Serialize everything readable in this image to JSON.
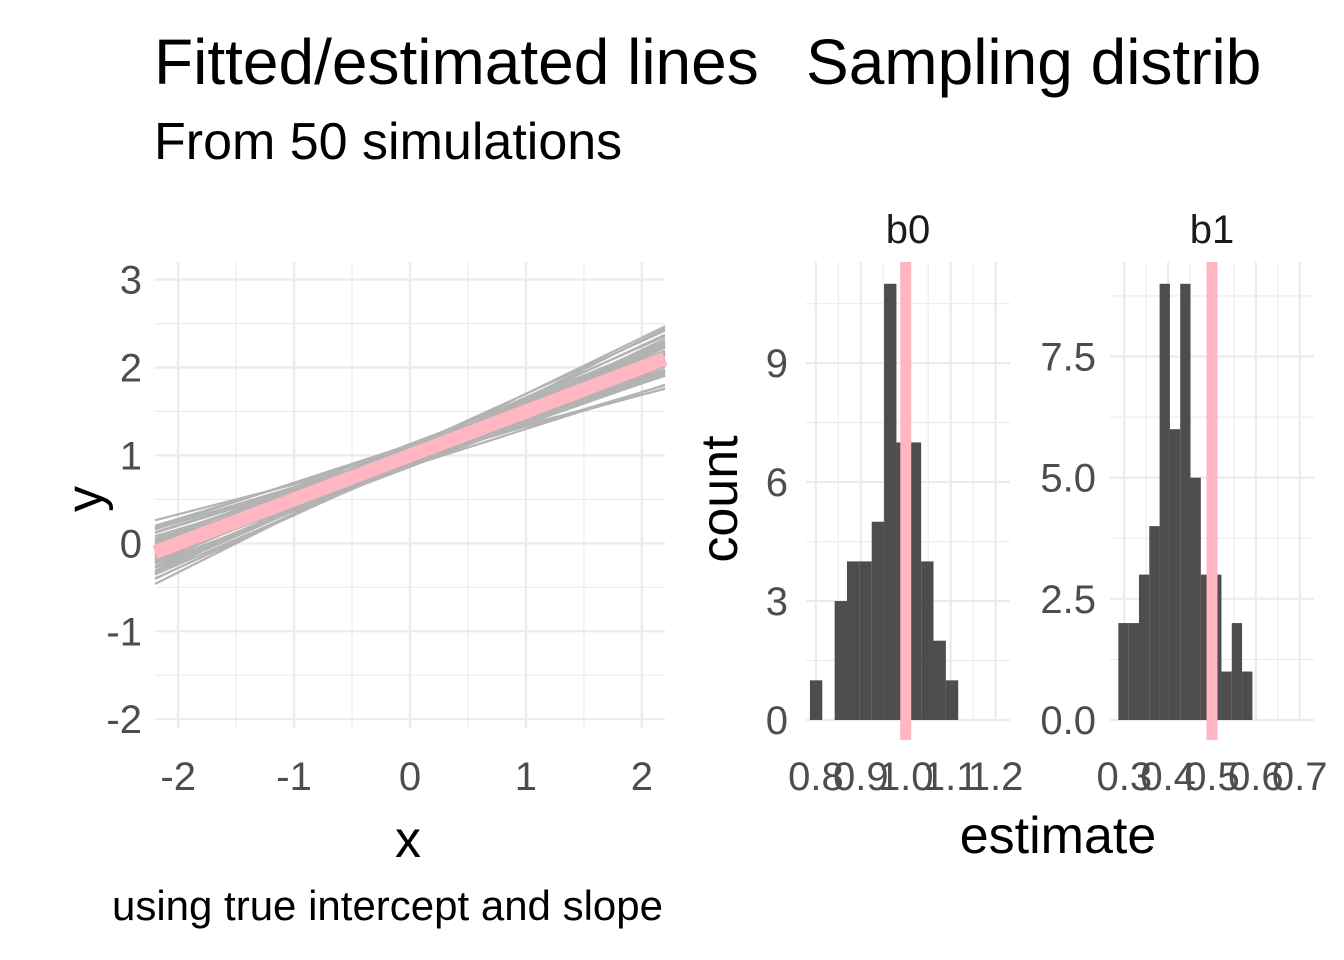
{
  "chart_data": [
    {
      "type": "line",
      "title": "Fitted/estimated lines",
      "subtitle": "From 50 simulations",
      "caption": "using true intercept and slope",
      "xlabel": "x",
      "ylabel": "y",
      "xlim": [
        -2.2,
        2.2
      ],
      "ylim": [
        -2.1,
        3.2
      ],
      "x_ticks": [
        "-2",
        "-1",
        "0",
        "1",
        "2"
      ],
      "y_ticks": [
        "-2",
        "-1",
        "0",
        "1",
        "2",
        "3"
      ],
      "grid": true,
      "true_line": {
        "intercept": 1.0,
        "slope": 0.5,
        "color": "#FFB6C1"
      },
      "line_color": "#B3B3B3",
      "fitted_lines": [
        {
          "b0": 0.98,
          "b1": 0.5
        },
        {
          "b0": 1.05,
          "b1": 0.55
        },
        {
          "b0": 0.92,
          "b1": 0.45
        },
        {
          "b0": 1.1,
          "b1": 0.6
        },
        {
          "b0": 0.95,
          "b1": 0.48
        },
        {
          "b0": 1.02,
          "b1": 0.52
        },
        {
          "b0": 0.88,
          "b1": 0.42
        },
        {
          "b0": 1.08,
          "b1": 0.58
        },
        {
          "b0": 0.99,
          "b1": 0.44
        },
        {
          "b0": 1.01,
          "b1": 0.56
        },
        {
          "b0": 0.96,
          "b1": 0.62
        },
        {
          "b0": 1.04,
          "b1": 0.4
        },
        {
          "b0": 0.93,
          "b1": 0.51
        },
        {
          "b0": 1.07,
          "b1": 0.47
        },
        {
          "b0": 0.97,
          "b1": 0.53
        },
        {
          "b0": 1.03,
          "b1": 0.49
        },
        {
          "b0": 0.9,
          "b1": 0.57
        },
        {
          "b0": 1.12,
          "b1": 0.43
        },
        {
          "b0": 0.94,
          "b1": 0.39
        },
        {
          "b0": 1.06,
          "b1": 0.64
        },
        {
          "b0": 1.0,
          "b1": 0.46
        },
        {
          "b0": 0.91,
          "b1": 0.54
        },
        {
          "b0": 1.09,
          "b1": 0.5
        },
        {
          "b0": 0.98,
          "b1": 0.59
        },
        {
          "b0": 1.02,
          "b1": 0.41
        },
        {
          "b0": 0.95,
          "b1": 0.55
        },
        {
          "b0": 1.05,
          "b1": 0.45
        },
        {
          "b0": 0.89,
          "b1": 0.48
        },
        {
          "b0": 1.11,
          "b1": 0.52
        },
        {
          "b0": 0.97,
          "b1": 0.36
        },
        {
          "b0": 1.03,
          "b1": 0.61
        },
        {
          "b0": 0.93,
          "b1": 0.47
        },
        {
          "b0": 1.07,
          "b1": 0.53
        },
        {
          "b0": 0.99,
          "b1": 0.66
        },
        {
          "b0": 1.01,
          "b1": 0.34
        },
        {
          "b0": 0.87,
          "b1": 0.5
        },
        {
          "b0": 1.13,
          "b1": 0.5
        },
        {
          "b0": 0.96,
          "b1": 0.43
        },
        {
          "b0": 1.04,
          "b1": 0.57
        },
        {
          "b0": 0.92,
          "b1": 0.6
        },
        {
          "b0": 1.08,
          "b1": 0.4
        },
        {
          "b0": 1.0,
          "b1": 0.52
        },
        {
          "b0": 0.94,
          "b1": 0.49
        },
        {
          "b0": 1.06,
          "b1": 0.51
        },
        {
          "b0": 0.98,
          "b1": 0.45
        },
        {
          "b0": 1.02,
          "b1": 0.55
        },
        {
          "b0": 0.9,
          "b1": 0.46
        },
        {
          "b0": 1.1,
          "b1": 0.54
        },
        {
          "b0": 0.95,
          "b1": 0.58
        },
        {
          "b0": 1.05,
          "b1": 0.42
        }
      ]
    },
    {
      "type": "bar",
      "title": "Sampling distrib",
      "xlabel": "estimate",
      "ylabel": "count",
      "bar_color": "#4D4D4D",
      "true_value_color": "#FFB6C1",
      "grid": true,
      "facets": [
        {
          "label": "b0",
          "true_value": 1.0,
          "xlim": [
            0.778,
            1.232
          ],
          "ylim": [
            0,
            11.55
          ],
          "x_ticks": [
            "0.8",
            "0.9",
            "1.0",
            "1.1",
            "1.2"
          ],
          "y_ticks": [
            "0",
            "3",
            "6",
            "9"
          ],
          "binwidth": 0.0275,
          "bins": [
            {
              "x": 0.8005,
              "count": 1
            },
            {
              "x": 0.828,
              "count": 0
            },
            {
              "x": 0.8555,
              "count": 3
            },
            {
              "x": 0.883,
              "count": 4
            },
            {
              "x": 0.9105,
              "count": 4
            },
            {
              "x": 0.938,
              "count": 5
            },
            {
              "x": 0.9655,
              "count": 11
            },
            {
              "x": 0.993,
              "count": 7
            },
            {
              "x": 1.0205,
              "count": 7
            },
            {
              "x": 1.048,
              "count": 4
            },
            {
              "x": 1.0755,
              "count": 2
            },
            {
              "x": 1.103,
              "count": 1
            }
          ]
        },
        {
          "label": "b1",
          "true_value": 0.5,
          "xlim": [
            0.2675,
            0.7325
          ],
          "ylim": [
            0,
            9.45
          ],
          "x_ticks": [
            "0.3",
            "0.4",
            "0.5",
            "0.6",
            "0.7"
          ],
          "y_ticks": [
            "0.0",
            "2.5",
            "5.0",
            "7.5"
          ],
          "binwidth": 0.0235,
          "bins": [
            {
              "x": 0.2983,
              "count": 2
            },
            {
              "x": 0.3218,
              "count": 2
            },
            {
              "x": 0.3453,
              "count": 3
            },
            {
              "x": 0.3688,
              "count": 4
            },
            {
              "x": 0.3923,
              "count": 9
            },
            {
              "x": 0.4158,
              "count": 6
            },
            {
              "x": 0.4393,
              "count": 9
            },
            {
              "x": 0.4628,
              "count": 5
            },
            {
              "x": 0.4863,
              "count": 3
            },
            {
              "x": 0.5098,
              "count": 3
            },
            {
              "x": 0.5333,
              "count": 1
            },
            {
              "x": 0.5568,
              "count": 2
            },
            {
              "x": 0.5803,
              "count": 1
            }
          ]
        }
      ]
    }
  ]
}
